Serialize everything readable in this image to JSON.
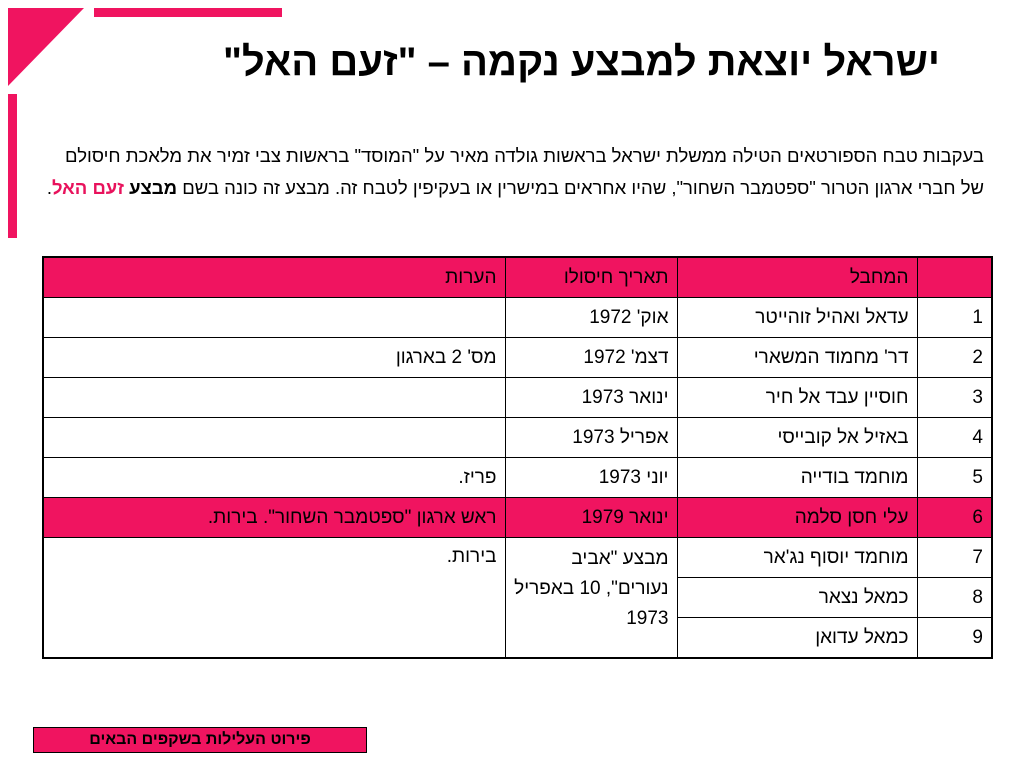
{
  "slide": {
    "accent_color": "#f01460",
    "title": "ישראל יוצאת למבצע נקמה – \"זעם האל\"",
    "intro": {
      "part1": "בעקבות טבח הספורטאים הטילה ממשלת ישראל בראשות גולדה מאיר על \"המוסד\" בראשות צבי זמיר את מלאכת חיסולם של חברי ארגון הטרור \"ספטמבר השחור\", שהיו אחראים במישרין או בעקיפין לטבח זה. מבצע זה כונה בשם ",
      "bold": "מבצע",
      "highlight": "זעם האל",
      "end": "."
    },
    "table": {
      "headers": {
        "num": "",
        "target": "המחבל",
        "date": "תאריך חיסולו",
        "notes": "הערות"
      },
      "rows": [
        {
          "num": "1",
          "target": "עדאל ואהיל זוהייטר",
          "date": "אוק' 1972",
          "notes": ""
        },
        {
          "num": "2",
          "target": "דר' מחמוד המשארי",
          "date": "דצמ' 1972",
          "notes": "מס' 2 בארגון"
        },
        {
          "num": "3",
          "target": "חוסיין עבד אל חיר",
          "date": "ינואר 1973",
          "notes": ""
        },
        {
          "num": "4",
          "target": "באזיל אל קובייסי",
          "date": "אפריל 1973",
          "notes": ""
        },
        {
          "num": "5",
          "target": "מוחמד בודייה",
          "date": "יוני 1973",
          "notes": "פריז."
        },
        {
          "num": "6",
          "target": "עלי חסן סלמה",
          "date": "ינואר 1979",
          "notes": "ראש ארגון \"ספטמבר השחור\". בירות."
        }
      ],
      "group": {
        "date": "מבצע \"אביב נעורים\", 10 באפריל 1973",
        "notes": "בירות.",
        "rows": [
          {
            "num": "7",
            "target": "מוחמד יוסוף נג'אר"
          },
          {
            "num": "8",
            "target": "כמאל נצאר"
          },
          {
            "num": "9",
            "target": "כמאל עדואן"
          }
        ]
      }
    },
    "footer_button": "פירוט העלילות בשקפים הבאים"
  }
}
